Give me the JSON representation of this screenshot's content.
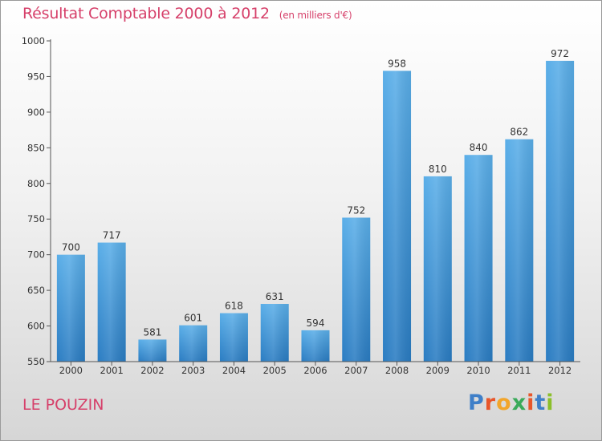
{
  "header": {
    "title": "Résultat Comptable 2000 à 2012",
    "unit": "(en milliers d'€)"
  },
  "footer": {
    "commune": "LE POUZIN",
    "logo": "Proxiti"
  },
  "colors": {
    "title": "#d6406a",
    "bar_top": "#5aaee8",
    "bar_bottom": "#2a7cc2",
    "logo_letters": [
      "#3f7fc8",
      "#e8562a",
      "#f2a52a",
      "#3aaa5a",
      "#e8562a",
      "#3f7fc8",
      "#8bbf2a"
    ]
  },
  "chart_data": {
    "type": "bar",
    "title": "Résultat Comptable 2000 à 2012",
    "subtitle": "(en milliers d'€)",
    "xlabel": "",
    "ylabel": "",
    "categories": [
      "2000",
      "2001",
      "2002",
      "2003",
      "2004",
      "2005",
      "2006",
      "2007",
      "2008",
      "2009",
      "2010",
      "2011",
      "2012"
    ],
    "values": [
      700,
      717,
      581,
      601,
      618,
      631,
      594,
      752,
      958,
      810,
      840,
      862,
      972
    ],
    "ylim": [
      550,
      1000
    ],
    "yticks": [
      550,
      600,
      650,
      700,
      750,
      800,
      850,
      900,
      950,
      1000
    ],
    "grid": false,
    "data_labels": true
  }
}
